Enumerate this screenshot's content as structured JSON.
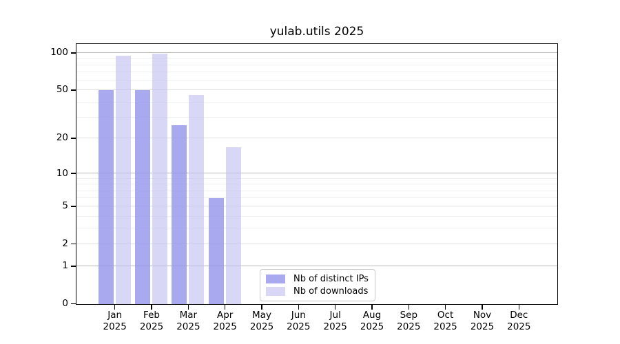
{
  "chart_data": {
    "type": "bar",
    "title": "yulab.utils 2025",
    "categories": [
      "Jan",
      "Feb",
      "Mar",
      "Apr",
      "May",
      "Jun",
      "Jul",
      "Aug",
      "Sep",
      "Oct",
      "Nov",
      "Dec"
    ],
    "category_year": "2025",
    "series": [
      {
        "name": "Nb of distinct IPs",
        "color": "#a9a9f0",
        "values": [
          50,
          50,
          26,
          6,
          0,
          0,
          0,
          0,
          0,
          0,
          0,
          0
        ]
      },
      {
        "name": "Nb of downloads",
        "color": "#d8d8f6",
        "values": [
          95,
          99,
          46,
          17,
          0,
          0,
          0,
          0,
          0,
          0,
          0,
          0
        ]
      }
    ],
    "xlabel": "",
    "ylabel": "",
    "y_scale": "log10(value+1)",
    "y_ticks": [
      0,
      1,
      2,
      5,
      10,
      20,
      50,
      100
    ],
    "y_tick_labels": [
      "0",
      "1",
      "2",
      "5",
      "10",
      "20",
      "50",
      "100"
    ],
    "y_minor_gridlines": [
      3,
      4,
      6,
      7,
      8,
      9,
      30,
      40,
      60,
      70,
      80,
      90
    ],
    "ylim": [
      0,
      110
    ],
    "grid": true,
    "legend_position": "inside-bottom-center"
  },
  "colors": {
    "grid_pow10": "#b8b8b8",
    "grid_labeled": "#dedede",
    "grid_minor": "#efefef",
    "axis_frame": "#000000",
    "legend_border": "#c9c9c9",
    "background": "#ffffff"
  }
}
